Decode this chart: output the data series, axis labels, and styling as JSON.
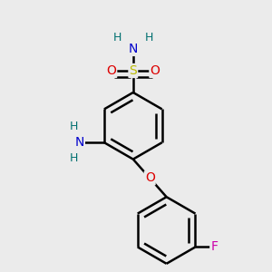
{
  "background_color": "#ebebeb",
  "atom_colors": {
    "C": "#000000",
    "N": "#0000cc",
    "O": "#dd0000",
    "S": "#bbbb00",
    "F": "#cc00aa",
    "H": "#007070"
  },
  "bond_color": "#000000",
  "bond_width": 1.8,
  "figsize": [
    3.0,
    3.0
  ],
  "dpi": 100
}
